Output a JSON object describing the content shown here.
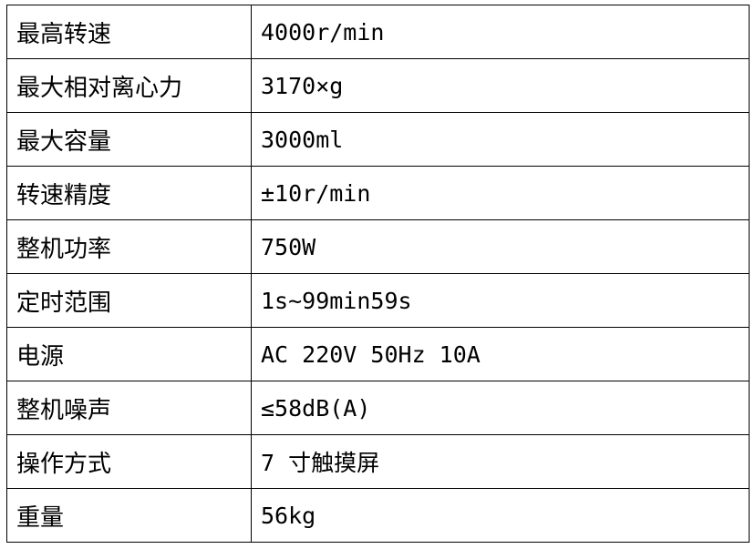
{
  "rows": [
    {
      "label": "最高转速",
      "value": "4000r/min"
    },
    {
      "label": "最大相对离心力",
      "value": "3170×g"
    },
    {
      "label": "最大容量",
      "value": "3000ml"
    },
    {
      "label": "转速精度",
      "value": "±10r/min"
    },
    {
      "label": "整机功率",
      "value": "750W"
    },
    {
      "label": "定时范围",
      "value": "1s~99min59s"
    },
    {
      "label": "电源",
      "value": "AC 220V 50Hz 10A"
    },
    {
      "label": "整机噪声",
      "value": "≤58dB(A)"
    },
    {
      "label": "操作方式",
      "value": "7 寸触摸屏"
    },
    {
      "label": "重量",
      "value": "56kg"
    }
  ]
}
